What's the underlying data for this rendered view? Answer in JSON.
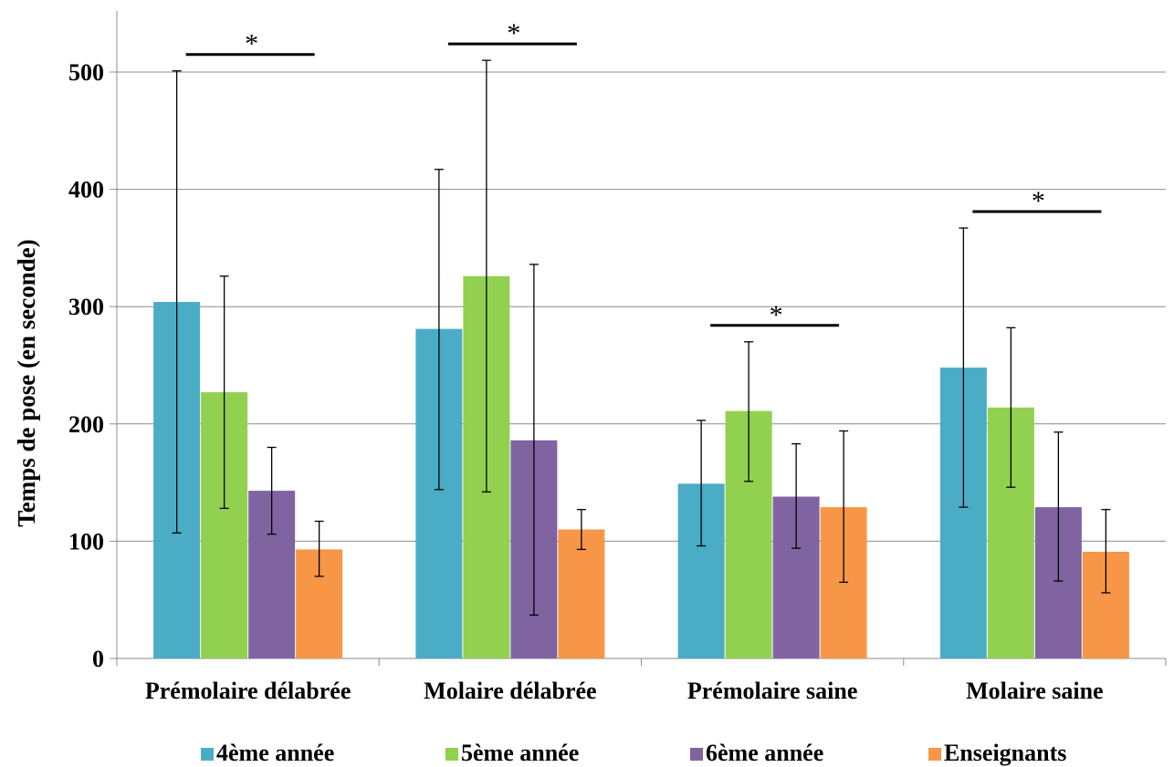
{
  "chart_data": {
    "type": "bar",
    "categories": [
      "Prémolaire délabrée",
      "Molaire délabrée",
      "Prémolaire saine",
      "Molaire saine"
    ],
    "series": [
      {
        "name": "4ème année",
        "color": "#4BACC6",
        "values": [
          304,
          281,
          149,
          248
        ],
        "err_low": [
          107,
          144,
          96,
          129
        ],
        "err_high": [
          501,
          417,
          203,
          367
        ]
      },
      {
        "name": "5ème année",
        "color": "#92D050",
        "values": [
          227,
          326,
          211,
          214
        ],
        "err_low": [
          128,
          142,
          151,
          146
        ],
        "err_high": [
          326,
          510,
          270,
          282
        ]
      },
      {
        "name": "6ème année",
        "color": "#8064A2",
        "values": [
          143,
          186,
          138,
          129
        ],
        "err_low": [
          106,
          37,
          94,
          66
        ],
        "err_high": [
          180,
          336,
          183,
          193
        ]
      },
      {
        "name": "Enseignants",
        "color": "#F79646",
        "values": [
          93,
          110,
          129,
          91
        ],
        "err_low": [
          70,
          93,
          65,
          56
        ],
        "err_high": [
          117,
          127,
          194,
          127
        ]
      }
    ],
    "ylabel": "Temps de pose (en seconde)",
    "xlabel": "",
    "ylim": [
      0,
      550
    ],
    "yticks": [
      0,
      100,
      200,
      300,
      400,
      500
    ],
    "grid": true,
    "legend_position": "bottom",
    "significance": [
      {
        "category": "Prémolaire délabrée",
        "label": "*"
      },
      {
        "category": "Molaire délabrée",
        "label": "*"
      },
      {
        "category": "Prémolaire saine",
        "label": "*"
      },
      {
        "category": "Molaire saine",
        "label": "*"
      }
    ]
  }
}
